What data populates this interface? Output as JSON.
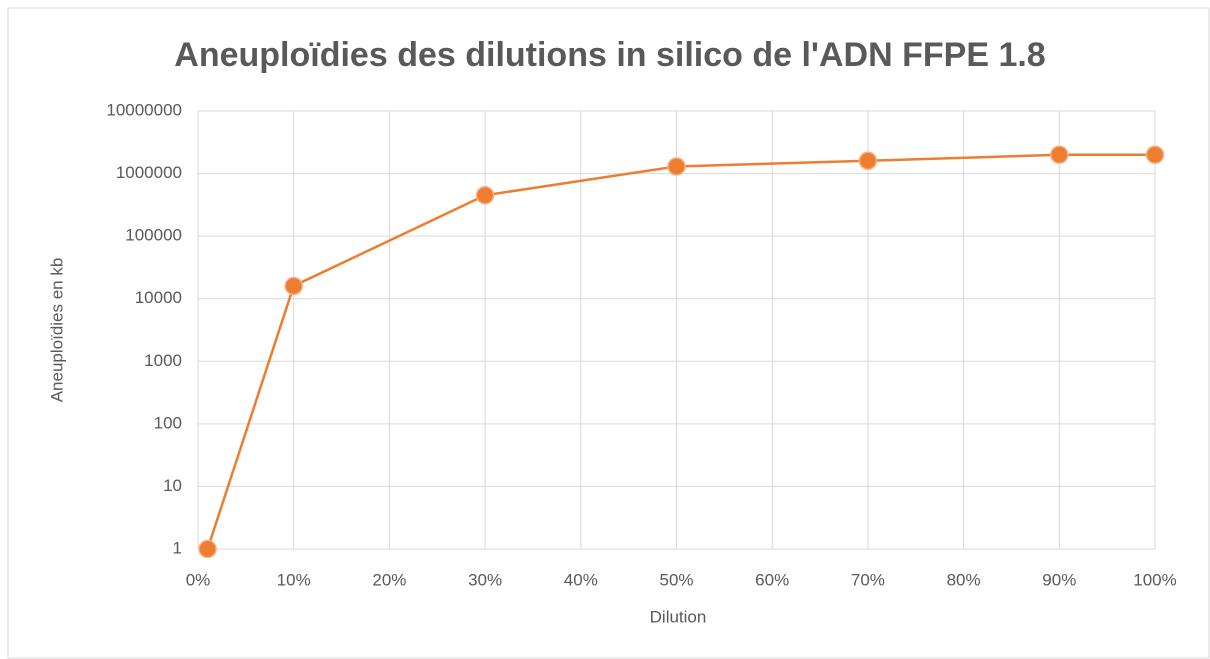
{
  "chart_data": {
    "type": "line",
    "title": "Aneuploïdies des dilutions in silico de l'ADN FFPE 1.8",
    "x_label": "Dilution",
    "y_label": "Aneuploïdies en kb",
    "x": [
      1,
      10,
      30,
      50,
      70,
      90,
      100
    ],
    "values": [
      1,
      16000,
      450000,
      1300000,
      1600000,
      2000000,
      2000000
    ],
    "color": "#ed7d31",
    "xlim": [
      0,
      100
    ],
    "xticks": [
      {
        "value": 0,
        "label": "0%"
      },
      {
        "value": 10,
        "label": "10%"
      },
      {
        "value": 20,
        "label": "20%"
      },
      {
        "value": 30,
        "label": "30%"
      },
      {
        "value": 40,
        "label": "40%"
      },
      {
        "value": 50,
        "label": "50%"
      },
      {
        "value": 60,
        "label": "60%"
      },
      {
        "value": 70,
        "label": "70%"
      },
      {
        "value": 80,
        "label": "80%"
      },
      {
        "value": 90,
        "label": "90%"
      },
      {
        "value": 100,
        "label": "100%"
      }
    ],
    "ylim": [
      1,
      10000000
    ],
    "yticks": [
      1,
      10,
      100,
      1000,
      10000,
      100000,
      1000000,
      10000000
    ],
    "y_log": true,
    "grid": true
  }
}
